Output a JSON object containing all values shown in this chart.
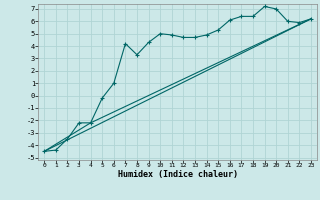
{
  "xlabel": "Humidex (Indice chaleur)",
  "background_color": "#cce8e8",
  "grid_color": "#b0d4d4",
  "line_color": "#006666",
  "xlim": [
    -0.5,
    23.5
  ],
  "ylim": [
    -5.2,
    7.4
  ],
  "xticks": [
    0,
    1,
    2,
    3,
    4,
    5,
    6,
    7,
    8,
    9,
    10,
    11,
    12,
    13,
    14,
    15,
    16,
    17,
    18,
    19,
    20,
    21,
    22,
    23
  ],
  "yticks": [
    -5,
    -4,
    -3,
    -2,
    -1,
    0,
    1,
    2,
    3,
    4,
    5,
    6,
    7
  ],
  "line1_x": [
    0,
    1,
    2,
    3,
    4,
    5,
    6,
    7,
    8,
    9,
    10,
    11,
    12,
    13,
    14,
    15,
    16,
    17,
    18,
    19,
    20,
    21,
    22,
    23
  ],
  "line1_y": [
    -4.5,
    -4.4,
    -3.5,
    -2.2,
    -2.2,
    -0.2,
    1.0,
    4.2,
    3.3,
    4.3,
    5.0,
    4.9,
    4.7,
    4.7,
    4.9,
    5.3,
    6.1,
    6.4,
    6.4,
    7.2,
    7.0,
    6.0,
    5.9,
    6.2
  ],
  "line2_x": [
    0,
    23
  ],
  "line2_y": [
    -4.5,
    6.2
  ],
  "line3_x": [
    0,
    4,
    23
  ],
  "line3_y": [
    -4.5,
    -2.2,
    6.2
  ]
}
